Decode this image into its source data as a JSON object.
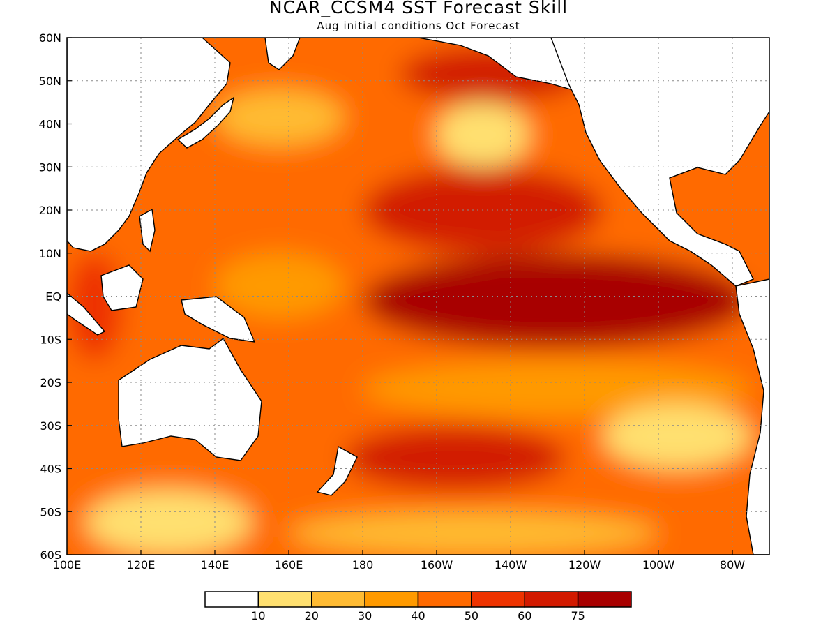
{
  "title": "NCAR_CCSM4 SST Forecast Skill",
  "subtitle": "Aug initial conditions  Oct Forecast",
  "chart_data": {
    "type": "heatmap",
    "title": "NCAR_CCSM4 SST Forecast Skill",
    "subtitle": "Aug initial conditions  Oct Forecast",
    "lon_range": [
      100,
      290
    ],
    "lat_range": [
      -60,
      60
    ],
    "grid": true,
    "x_ticks": [
      {
        "lon": 100,
        "label": "100E"
      },
      {
        "lon": 120,
        "label": "120E"
      },
      {
        "lon": 140,
        "label": "140E"
      },
      {
        "lon": 160,
        "label": "160E"
      },
      {
        "lon": 180,
        "label": "180"
      },
      {
        "lon": 200,
        "label": "160W"
      },
      {
        "lon": 220,
        "label": "140W"
      },
      {
        "lon": 240,
        "label": "120W"
      },
      {
        "lon": 260,
        "label": "100W"
      },
      {
        "lon": 280,
        "label": "80W"
      }
    ],
    "y_ticks": [
      {
        "lat": 60,
        "label": "60N"
      },
      {
        "lat": 50,
        "label": "50N"
      },
      {
        "lat": 40,
        "label": "40N"
      },
      {
        "lat": 30,
        "label": "30N"
      },
      {
        "lat": 20,
        "label": "20N"
      },
      {
        "lat": 10,
        "label": "10N"
      },
      {
        "lat": 0,
        "label": "EQ"
      },
      {
        "lat": -10,
        "label": "10S"
      },
      {
        "lat": -20,
        "label": "20S"
      },
      {
        "lat": -30,
        "label": "30S"
      },
      {
        "lat": -40,
        "label": "40S"
      },
      {
        "lat": -50,
        "label": "50S"
      },
      {
        "lat": -60,
        "label": "60S"
      }
    ],
    "colorbar": {
      "colors": [
        "#ffffff",
        "#ffe070",
        "#ffbb33",
        "#ff9a00",
        "#ff6a00",
        "#ee3300",
        "#d21a00",
        "#a80000"
      ],
      "boundary_labels": [
        "10",
        "20",
        "30",
        "40",
        "50",
        "60",
        "75"
      ]
    },
    "regions": [
      {
        "name": "background",
        "lon": [
          100,
          290
        ],
        "lat": [
          -60,
          60
        ],
        "value": 40
      },
      {
        "name": "east-pacific-equatorial",
        "lon": [
          180,
          285
        ],
        "lat": [
          -12,
          10
        ],
        "value": 80
      },
      {
        "name": "central-north-pacific",
        "lon": [
          180,
          245
        ],
        "lat": [
          10,
          30
        ],
        "value": 65
      },
      {
        "name": "gulf-of-alaska",
        "lon": [
          190,
          240
        ],
        "lat": [
          45,
          58
        ],
        "value": 65
      },
      {
        "name": "kuroshio-extension",
        "lon": [
          140,
          175
        ],
        "lat": [
          35,
          48
        ],
        "value": 22
      },
      {
        "name": "northeast-pacific-warm-blob",
        "lon": [
          200,
          225
        ],
        "lat": [
          30,
          45
        ],
        "value": 15
      },
      {
        "name": "south-pacific-subtropical-band",
        "lon": [
          180,
          285
        ],
        "lat": [
          -28,
          -15
        ],
        "value": 30
      },
      {
        "name": "southeast-pacific",
        "lon": [
          245,
          285
        ],
        "lat": [
          -40,
          -25
        ],
        "value": 18
      },
      {
        "name": "southern-ocean-band",
        "lon": [
          160,
          260
        ],
        "lat": [
          -60,
          -50
        ],
        "value": 20
      },
      {
        "name": "south-of-australia",
        "lon": [
          105,
          150
        ],
        "lat": [
          -60,
          -45
        ],
        "value": 12
      },
      {
        "name": "central-south-pacific",
        "lon": [
          175,
          235
        ],
        "lat": [
          -45,
          -30
        ],
        "value": 62
      },
      {
        "name": "west-pacific-warm-pool",
        "lon": [
          140,
          175
        ],
        "lat": [
          -5,
          10
        ],
        "value": 38
      },
      {
        "name": "indian-ocean-east",
        "lon": [
          100,
          115
        ],
        "lat": [
          -15,
          10
        ],
        "value": 55
      }
    ]
  }
}
